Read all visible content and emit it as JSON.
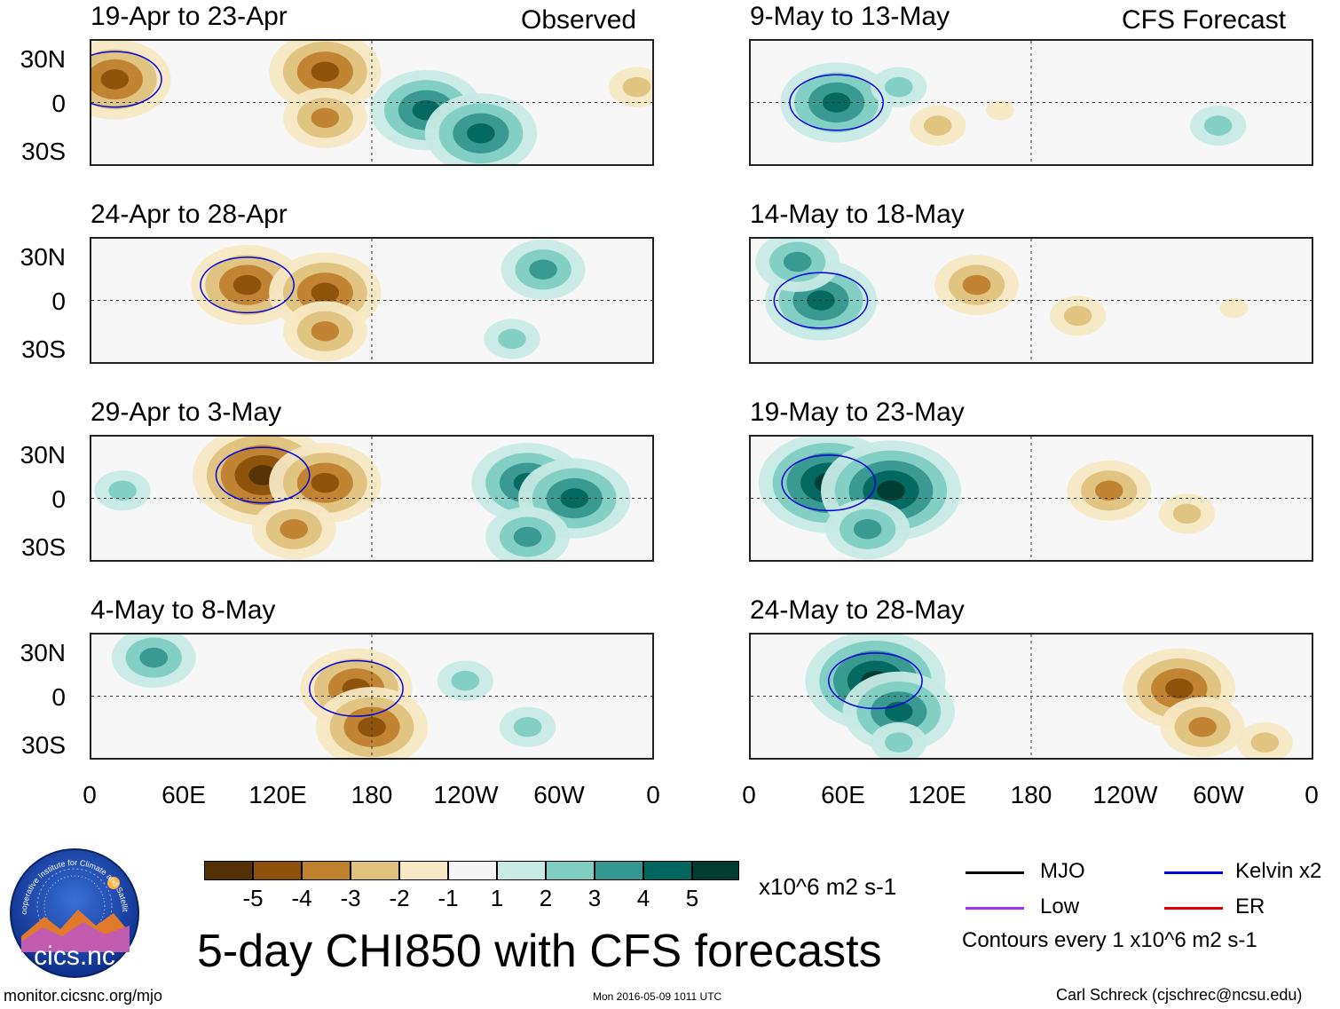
{
  "header": {
    "left_tag": "Observed",
    "right_tag": "CFS Forecast"
  },
  "panels": {
    "observed": [
      {
        "title": "19-Apr to 23-Apr"
      },
      {
        "title": "24-Apr to 28-Apr"
      },
      {
        "title": "29-Apr to 3-May"
      },
      {
        "title": "4-May to 8-May"
      }
    ],
    "forecast": [
      {
        "title": "9-May to 13-May"
      },
      {
        "title": "14-May to 18-May"
      },
      {
        "title": "19-May to 23-May"
      },
      {
        "title": "24-May to 28-May"
      }
    ]
  },
  "axes": {
    "y_ticks": [
      "30N",
      "0",
      "30S"
    ],
    "x_ticks": [
      "0",
      "60E",
      "120E",
      "180",
      "120W",
      "60W",
      "0"
    ]
  },
  "colorbar": {
    "labels": [
      "-5",
      "-4",
      "-3",
      "-2",
      "-1",
      "1",
      "2",
      "3",
      "4",
      "5"
    ],
    "colors": [
      "#543005",
      "#8c510a",
      "#bf812d",
      "#dfc27d",
      "#f6e8c3",
      "#f5f5f5",
      "#c7eae5",
      "#80cdc1",
      "#35978f",
      "#01665e",
      "#003c30"
    ],
    "units": "x10^6 m2 s-1"
  },
  "legend": {
    "items": [
      {
        "label": "MJO",
        "color": "#000000"
      },
      {
        "label": "Kelvin x2",
        "color": "#0000dd"
      },
      {
        "label": "Low",
        "color": "#9933ff"
      },
      {
        "label": "ER",
        "color": "#dd0000"
      }
    ],
    "contours_note": "Contours every 1 x10^6 m2 s-1"
  },
  "footer": {
    "title": "5-day CHI850 with CFS forecasts",
    "url": "monitor.cicsnc.org/mjo",
    "timestamp": "Mon 2016-05-09 1011 UTC",
    "credit": "Carl Schreck (cjschrec@ncsu.edu)",
    "logo_text": "cics.nc",
    "logo_ring_text": "Cooperative Institute for Climate and Satellites"
  },
  "chart_data": {
    "type": "heatmap",
    "variable": "5-day CHI850 anomaly",
    "units": "x10^6 m2 s-1",
    "levels": [
      -5,
      -4,
      -3,
      -2,
      -1,
      1,
      2,
      3,
      4,
      5
    ],
    "lon_ticks": [
      "0",
      "60E",
      "120E",
      "180",
      "120W",
      "60W",
      "0"
    ],
    "lat_ticks": [
      "30N",
      "0",
      "30S"
    ],
    "lon_range_deg": [
      0,
      360
    ],
    "lat_range_deg": [
      -40,
      40
    ],
    "panels": [
      {
        "title": "19-Apr to 23-Apr",
        "source": "Observed",
        "blobs": [
          {
            "lon": 15,
            "lat": 15,
            "value": -4
          },
          {
            "lon": 150,
            "lat": 20,
            "value": -4
          },
          {
            "lon": 150,
            "lat": -10,
            "value": -3
          },
          {
            "lon": 215,
            "lat": -5,
            "value": 4
          },
          {
            "lon": 250,
            "lat": -20,
            "value": 4
          },
          {
            "lon": 350,
            "lat": 10,
            "value": -2
          }
        ]
      },
      {
        "title": "24-Apr to 28-Apr",
        "source": "Observed",
        "blobs": [
          {
            "lon": 100,
            "lat": 10,
            "value": -4
          },
          {
            "lon": 150,
            "lat": 5,
            "value": -4
          },
          {
            "lon": 150,
            "lat": -20,
            "value": -3
          },
          {
            "lon": 290,
            "lat": 20,
            "value": 3
          },
          {
            "lon": 270,
            "lat": -25,
            "value": 2
          }
        ]
      },
      {
        "title": "29-Apr to 3-May",
        "source": "Observed",
        "blobs": [
          {
            "lon": 110,
            "lat": 15,
            "value": -5
          },
          {
            "lon": 150,
            "lat": 10,
            "value": -4
          },
          {
            "lon": 130,
            "lat": -20,
            "value": -3
          },
          {
            "lon": 280,
            "lat": 10,
            "value": 4
          },
          {
            "lon": 310,
            "lat": 0,
            "value": 4
          },
          {
            "lon": 280,
            "lat": -25,
            "value": 3
          },
          {
            "lon": 20,
            "lat": 5,
            "value": 2
          }
        ]
      },
      {
        "title": "4-May to 8-May",
        "source": "Observed",
        "blobs": [
          {
            "lon": 170,
            "lat": 5,
            "value": -4
          },
          {
            "lon": 180,
            "lat": -20,
            "value": -4
          },
          {
            "lon": 40,
            "lat": 25,
            "value": 3
          },
          {
            "lon": 280,
            "lat": -20,
            "value": 2
          },
          {
            "lon": 240,
            "lat": 10,
            "value": 2
          }
        ]
      },
      {
        "title": "9-May to 13-May",
        "source": "CFS Forecast",
        "blobs": [
          {
            "lon": 55,
            "lat": 0,
            "value": 4
          },
          {
            "lon": 95,
            "lat": 10,
            "value": 2
          },
          {
            "lon": 120,
            "lat": -15,
            "value": -2
          },
          {
            "lon": 160,
            "lat": -5,
            "value": -1
          },
          {
            "lon": 300,
            "lat": -15,
            "value": 2
          }
        ]
      },
      {
        "title": "14-May to 18-May",
        "source": "CFS Forecast",
        "blobs": [
          {
            "lon": 45,
            "lat": 0,
            "value": 4
          },
          {
            "lon": 30,
            "lat": 25,
            "value": 3
          },
          {
            "lon": 145,
            "lat": 10,
            "value": -3
          },
          {
            "lon": 210,
            "lat": -10,
            "value": -2
          },
          {
            "lon": 310,
            "lat": -5,
            "value": -1
          }
        ]
      },
      {
        "title": "19-May to 23-May",
        "source": "CFS Forecast",
        "blobs": [
          {
            "lon": 50,
            "lat": 10,
            "value": 5
          },
          {
            "lon": 90,
            "lat": 5,
            "value": 5
          },
          {
            "lon": 75,
            "lat": -20,
            "value": 3
          },
          {
            "lon": 230,
            "lat": 5,
            "value": -3
          },
          {
            "lon": 280,
            "lat": -10,
            "value": -2
          }
        ]
      },
      {
        "title": "24-May to 28-May",
        "source": "CFS Forecast",
        "blobs": [
          {
            "lon": 80,
            "lat": 10,
            "value": 5
          },
          {
            "lon": 95,
            "lat": -10,
            "value": 4
          },
          {
            "lon": 95,
            "lat": -30,
            "value": 2
          },
          {
            "lon": 275,
            "lat": 5,
            "value": -4
          },
          {
            "lon": 290,
            "lat": -20,
            "value": -3
          },
          {
            "lon": 330,
            "lat": -30,
            "value": -2
          }
        ]
      }
    ]
  }
}
